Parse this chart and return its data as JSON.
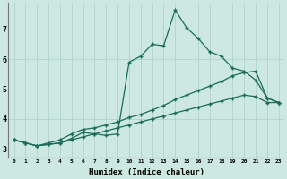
{
  "xlabel": "Humidex (Indice chaleur)",
  "bg_color": "#cce8e0",
  "line_color": "#1a6b5a",
  "grid_color": "#aacfc8",
  "xlim": [
    -0.5,
    23.5
  ],
  "ylim": [
    2.7,
    7.9
  ],
  "xticks": [
    0,
    1,
    2,
    3,
    4,
    5,
    6,
    7,
    8,
    9,
    10,
    11,
    12,
    13,
    14,
    15,
    16,
    17,
    18,
    19,
    20,
    21,
    22,
    23
  ],
  "yticks": [
    3,
    4,
    5,
    6,
    7
  ],
  "line1_x": [
    0,
    1,
    2,
    3,
    4,
    5,
    6,
    7,
    8,
    9,
    10,
    11,
    12,
    13,
    14,
    15,
    16,
    17,
    18,
    19,
    20,
    21,
    22,
    23
  ],
  "line1_y": [
    3.3,
    3.2,
    3.1,
    3.15,
    3.2,
    3.35,
    3.55,
    3.5,
    3.45,
    3.5,
    5.9,
    6.1,
    6.5,
    6.45,
    7.65,
    7.05,
    6.7,
    6.25,
    6.1,
    5.7,
    5.6,
    5.3,
    4.7,
    4.55
  ],
  "line2_x": [
    0,
    1,
    2,
    3,
    4,
    5,
    6,
    7,
    8,
    9,
    10,
    11,
    12,
    13,
    14,
    15,
    16,
    17,
    18,
    19,
    20,
    21,
    22,
    23
  ],
  "line2_y": [
    3.3,
    3.2,
    3.1,
    3.2,
    3.3,
    3.5,
    3.65,
    3.7,
    3.8,
    3.9,
    4.05,
    4.15,
    4.3,
    4.45,
    4.65,
    4.8,
    4.95,
    5.1,
    5.25,
    5.45,
    5.55,
    5.6,
    4.7,
    4.55
  ],
  "line3_x": [
    0,
    1,
    2,
    3,
    4,
    5,
    6,
    7,
    8,
    9,
    10,
    11,
    12,
    13,
    14,
    15,
    16,
    17,
    18,
    19,
    20,
    21,
    22,
    23
  ],
  "line3_y": [
    3.3,
    3.2,
    3.1,
    3.15,
    3.2,
    3.3,
    3.4,
    3.5,
    3.6,
    3.7,
    3.8,
    3.9,
    4.0,
    4.1,
    4.2,
    4.3,
    4.4,
    4.5,
    4.6,
    4.7,
    4.8,
    4.75,
    4.55,
    4.55
  ]
}
